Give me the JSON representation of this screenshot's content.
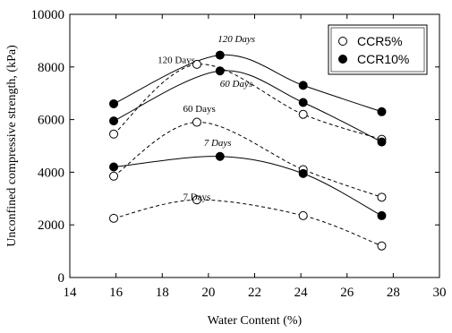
{
  "chart_data": {
    "type": "scatter",
    "xlabel": "Water Content (%)",
    "ylabel": "Unconfined compressive strength, (kPa)",
    "xlim": [
      14,
      30
    ],
    "ylim": [
      0,
      10000
    ],
    "xticks": [
      14,
      16,
      18,
      20,
      22,
      24,
      26,
      28,
      30
    ],
    "yticks": [
      0,
      2000,
      4000,
      6000,
      8000,
      10000
    ],
    "legend": {
      "position": "top-right",
      "entries": [
        "CCR5%",
        "CCR10%"
      ]
    },
    "series": [
      {
        "name": "CCR5%",
        "group": "7 Days",
        "marker": "open",
        "line": "dashed",
        "x": [
          15.9,
          19.5,
          24.1,
          27.5
        ],
        "y": [
          2250,
          2950,
          2350,
          1200
        ]
      },
      {
        "name": "CCR5%",
        "group": "60 Days",
        "marker": "open",
        "line": "dashed",
        "x": [
          15.9,
          19.5,
          24.1,
          27.5
        ],
        "y": [
          3850,
          5900,
          4100,
          3050
        ]
      },
      {
        "name": "CCR5%",
        "group": "120 Days",
        "marker": "open",
        "line": "dashed",
        "x": [
          15.9,
          19.5,
          24.1,
          27.5
        ],
        "y": [
          5450,
          8100,
          6200,
          5250
        ]
      },
      {
        "name": "CCR10%",
        "group": "7 Days",
        "marker": "filled",
        "line": "solid",
        "x": [
          15.9,
          20.5,
          24.1,
          27.5
        ],
        "y": [
          4200,
          4600,
          3950,
          2350
        ]
      },
      {
        "name": "CCR10%",
        "group": "60 Days",
        "marker": "filled",
        "line": "solid",
        "x": [
          15.9,
          20.5,
          24.1,
          27.5
        ],
        "y": [
          5950,
          7850,
          6650,
          5150
        ]
      },
      {
        "name": "CCR10%",
        "group": "120 Days",
        "marker": "filled",
        "line": "solid",
        "x": [
          15.9,
          20.5,
          24.1,
          27.5
        ],
        "y": [
          6600,
          8450,
          7300,
          6300
        ]
      }
    ],
    "annotations": [
      {
        "text": "7 Days",
        "x": 18.9,
        "y": 2950,
        "italic": false
      },
      {
        "text": "60 Days",
        "x": 18.9,
        "y": 6300,
        "italic": false
      },
      {
        "text": "120 Days",
        "x": 17.8,
        "y": 8150,
        "italic": false
      },
      {
        "text": "7 Days",
        "x": 19.8,
        "y": 5000,
        "italic": true
      },
      {
        "text": "60 Days",
        "x": 20.5,
        "y": 7250,
        "italic": true
      },
      {
        "text": "120 Days",
        "x": 20.4,
        "y": 8950,
        "italic": true
      }
    ]
  }
}
